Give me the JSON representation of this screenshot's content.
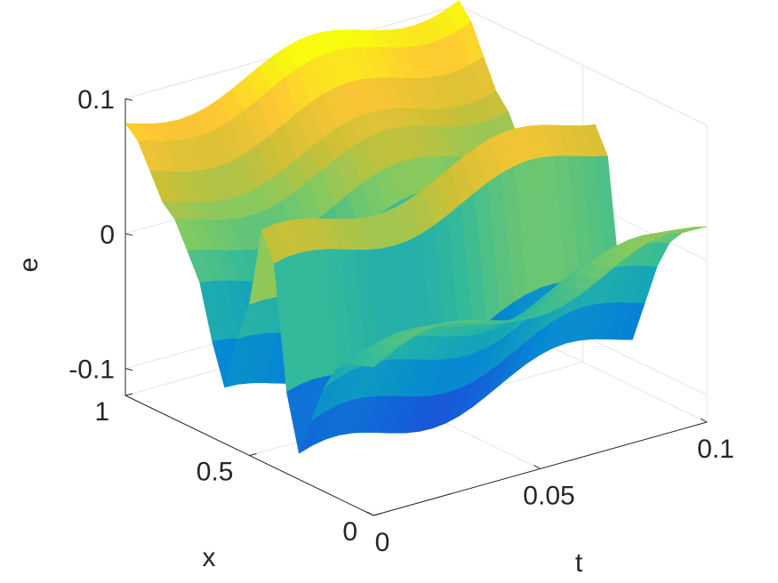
{
  "chart_data": {
    "type": "surface",
    "title": "",
    "xlabel": "x",
    "ylabel": "t",
    "zlabel": "e",
    "x_axis": {
      "range": [
        0,
        1
      ],
      "ticks": [
        0,
        0.5,
        1
      ],
      "tick_labels": [
        "0",
        "0.5",
        "1"
      ]
    },
    "t_axis": {
      "range": [
        0,
        0.1
      ],
      "ticks": [
        0,
        0.05,
        0.1
      ],
      "tick_labels": [
        "0",
        "0.05",
        "0.1"
      ]
    },
    "e_axis": {
      "range": [
        -0.12,
        0.1
      ],
      "ticks": [
        -0.1,
        0,
        0.1
      ],
      "tick_labels": [
        "-0.1",
        "0",
        "0.1"
      ]
    },
    "grid": true,
    "colormap": "parula",
    "surface_profile": {
      "description_values": "e(x) profile repeated along t, with a slow ramp and wobble in t",
      "x": [
        0,
        0.05,
        0.1,
        0.15,
        0.2,
        0.25,
        0.3,
        0.35,
        0.4,
        0.45,
        0.5,
        0.55,
        0.6,
        0.65,
        0.7,
        0.75,
        0.8,
        0.85,
        0.9,
        0.95,
        1.0
      ],
      "e_at_t0": [
        -0.01,
        -0.015,
        -0.02,
        -0.03,
        -0.05,
        -0.08,
        -0.11,
        -0.07,
        0.02,
        0.04,
        -0.02,
        -0.05,
        -0.09,
        -0.06,
        -0.02,
        0.0,
        0.02,
        0.03,
        0.05,
        0.07,
        0.08
      ]
    },
    "t_samples": 26,
    "x_samples": 21
  }
}
